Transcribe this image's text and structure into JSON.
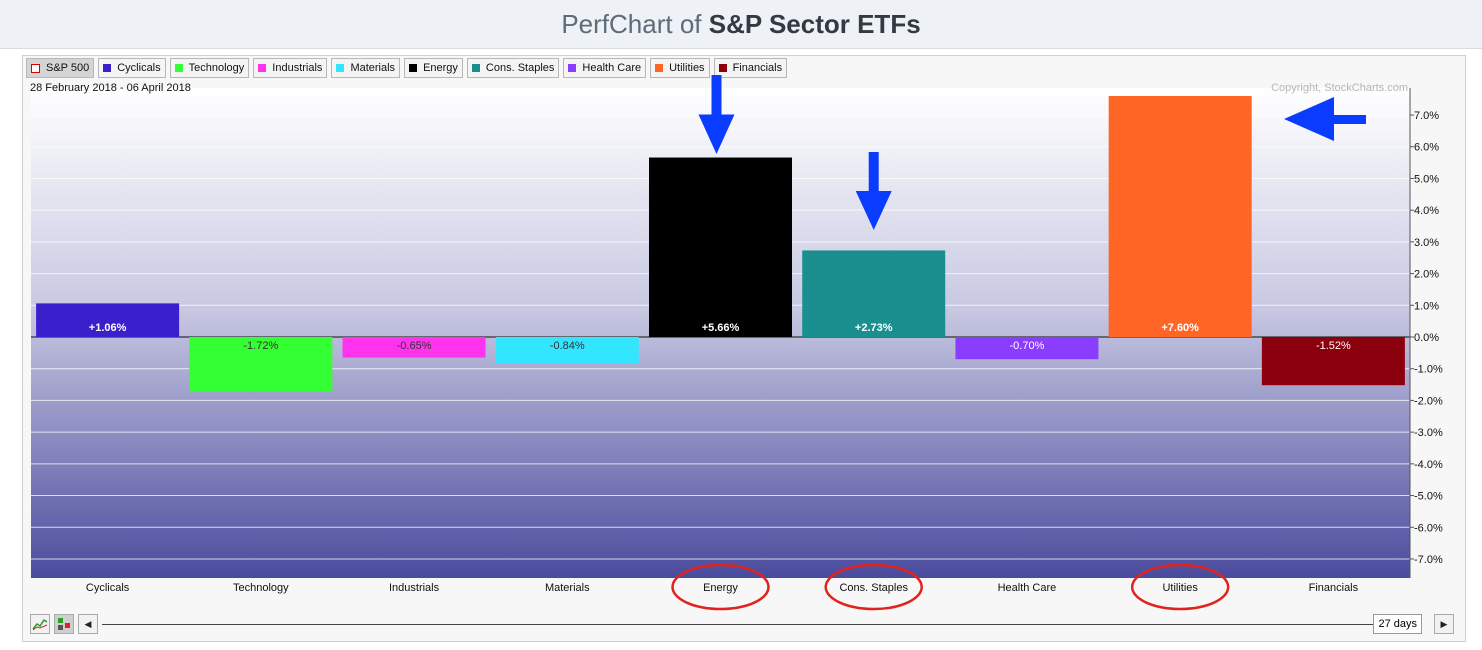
{
  "header": {
    "title_prefix": "PerfChart of",
    "title_main": "S&P Sector ETFs"
  },
  "legend": [
    {
      "label": "S&P 500",
      "color": "#ffffff",
      "selected": true
    },
    {
      "label": "Cyclicals",
      "color": "#3a1fcc"
    },
    {
      "label": "Technology",
      "color": "#33ff33"
    },
    {
      "label": "Industrials",
      "color": "#ff33ee"
    },
    {
      "label": "Materials",
      "color": "#33e6ff"
    },
    {
      "label": "Energy",
      "color": "#000000"
    },
    {
      "label": "Cons. Staples",
      "color": "#1a8f8f"
    },
    {
      "label": "Health Care",
      "color": "#8a3dff"
    },
    {
      "label": "Utilities",
      "color": "#ff6626"
    },
    {
      "label": "Financials",
      "color": "#8c000d"
    }
  ],
  "date_range": "28 February 2018 - 06 April 2018",
  "copyright": "Copyright, StockCharts.com",
  "controls": {
    "days": "27 days",
    "left_arrow": "◀",
    "right_arrow": "▶"
  },
  "chart_data": {
    "type": "bar",
    "categories": [
      "Cyclicals",
      "Technology",
      "Industrials",
      "Materials",
      "Energy",
      "Cons. Staples",
      "Health Care",
      "Utilities",
      "Financials"
    ],
    "values": [
      1.06,
      -1.72,
      -0.65,
      -0.84,
      5.66,
      2.73,
      -0.7,
      7.6,
      -1.52
    ],
    "labels": [
      "+1.06%",
      "-1.72%",
      "-0.65%",
      "-0.84%",
      "+5.66%",
      "+2.73%",
      "-0.70%",
      "+7.60%",
      "-1.52%"
    ],
    "colors": [
      "#3a1fcc",
      "#33ff33",
      "#ff33ee",
      "#33e6ff",
      "#000000",
      "#1a8f8f",
      "#8a3dff",
      "#ff6626",
      "#8c000d"
    ],
    "label_colors": [
      "#ffffff",
      "#333333",
      "#333333",
      "#333333",
      "#ffffff",
      "#ffffff",
      "#ffffff",
      "#ffffff",
      "#ffffff"
    ],
    "ylim": [
      -7.6,
      7.6
    ],
    "ytick_values": [
      7,
      6,
      5,
      4,
      3,
      2,
      1,
      0,
      -1,
      -2,
      -3,
      -4,
      -5,
      -6,
      -7
    ],
    "ytick_labels": [
      "7.0%",
      "6.0%",
      "5.0%",
      "4.0%",
      "3.0%",
      "2.0%",
      "1.0%",
      "0.0%",
      "-1.0%",
      "-2.0%",
      "-3.0%",
      "-4.0%",
      "-5.0%",
      "-6.0%",
      "-7.0%"
    ],
    "highlighted": [
      "Energy",
      "Cons. Staples",
      "Utilities"
    ],
    "grid": true
  }
}
